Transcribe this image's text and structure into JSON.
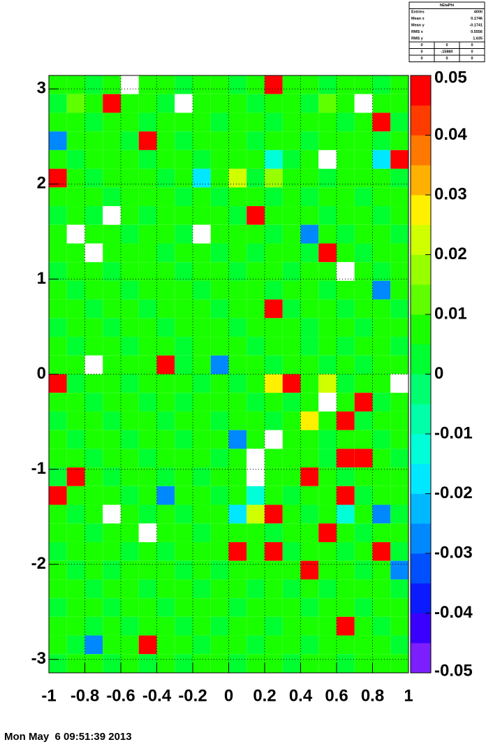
{
  "chart_data": {
    "type": "heatmap",
    "xlim": [
      -1,
      1
    ],
    "ylim": [
      -3.1416,
      3.1416
    ],
    "zlim": [
      -0.05,
      0.05
    ],
    "xticks": [
      -1,
      -0.8,
      -0.6,
      -0.4,
      -0.2,
      0,
      0.2,
      0.4,
      0.6,
      0.8,
      1
    ],
    "yticks": [
      -3,
      -2,
      -1,
      0,
      1,
      2,
      3
    ],
    "zticks": [
      -0.05,
      -0.04,
      -0.03,
      -0.02,
      -0.01,
      0,
      0.01,
      0.02,
      0.03,
      0.04,
      0.05
    ],
    "grid": true,
    "palette": [
      "#7b1fff",
      "#3a00ff",
      "#0a1cff",
      "#0050ff",
      "#0088ff",
      "#00b8ff",
      "#00e8ff",
      "#00ffd8",
      "#00ffa8",
      "#00ff70",
      "#00ff30",
      "#1aff00",
      "#60ff00",
      "#98ff00",
      "#d0ff00",
      "#fff000",
      "#ffb000",
      "#ff7800",
      "#ff3c00",
      "#ff0000"
    ],
    "xbins": [
      -1,
      -0.9,
      -0.8,
      -0.7,
      -0.6,
      -0.5,
      -0.4,
      -0.3,
      -0.2,
      -0.1,
      0,
      0.1,
      0.2,
      0.3,
      0.4,
      0.5,
      0.6,
      0.7,
      0.8,
      0.9,
      1
    ],
    "ybins": [
      3.1416,
      2.9452,
      2.7489,
      2.5525,
      2.3562,
      2.1598,
      1.9635,
      1.7671,
      1.5708,
      1.3744,
      1.1781,
      0.9817,
      0.7854,
      0.589,
      0.3927,
      0.1963,
      0,
      -0.1963,
      -0.3927,
      -0.589,
      -0.7854,
      -0.9817,
      -1.1781,
      -1.3744,
      -1.5708,
      -1.7671,
      -1.9635,
      -2.1598,
      -2.3562,
      -2.5525,
      -2.7489,
      -2.9452,
      -3.1416
    ],
    "values": [
      [
        0.006,
        0.009,
        0.003,
        0.006,
        0,
        0.009,
        0.006,
        0.003,
        0.009,
        0.006,
        0.003,
        0.006,
        0.05,
        0.009,
        0.006,
        0.003,
        0.009,
        0.006,
        0.003,
        0.006
      ],
      [
        0.003,
        0.013,
        0.006,
        0.05,
        0.006,
        0.009,
        0.003,
        0,
        0.006,
        0.009,
        0.006,
        0.003,
        0.009,
        0.006,
        0.003,
        0.013,
        0.006,
        0,
        0.009,
        0.006
      ],
      [
        0.009,
        0.006,
        0.003,
        0.006,
        0.009,
        0.003,
        0.006,
        0.009,
        0.006,
        0.003,
        0.006,
        0.009,
        0.003,
        0.006,
        0.009,
        0.006,
        0.003,
        0.006,
        0.05,
        0.003
      ],
      [
        -0.03,
        0.006,
        0.009,
        0.006,
        0.003,
        0.05,
        0.006,
        0.003,
        0.009,
        0.006,
        0.009,
        0.003,
        0.006,
        0.009,
        0.003,
        0.006,
        0.009,
        0.006,
        0.003,
        0.009
      ],
      [
        0.006,
        0.003,
        0.006,
        0.009,
        0.006,
        0.003,
        0.009,
        0.006,
        0.003,
        0.009,
        0.006,
        0.006,
        -0.01,
        0.003,
        0.006,
        0,
        0.009,
        0.006,
        -0.02,
        0.05
      ],
      [
        0.05,
        0.009,
        0.003,
        0.006,
        0.009,
        0.006,
        0.003,
        0.009,
        -0.02,
        0.006,
        0.024,
        0.003,
        0.016,
        0.006,
        0.009,
        0.003,
        0.006,
        0.009,
        0.006,
        0.003
      ],
      [
        0.009,
        0.006,
        0.009,
        0.003,
        0.006,
        0.009,
        0.006,
        0.003,
        0.006,
        0.003,
        0.006,
        0.009,
        0.003,
        0.006,
        0.003,
        0.009,
        0.006,
        0.003,
        0.009,
        0.006
      ],
      [
        0.003,
        0.006,
        0.003,
        0,
        0.006,
        0.003,
        0.006,
        0.009,
        0.006,
        0.009,
        0.003,
        0.05,
        0.006,
        0.009,
        0.006,
        0.003,
        0.009,
        0.006,
        0.003,
        0.009
      ],
      [
        0.006,
        0,
        0.006,
        0.009,
        0.003,
        0.006,
        0.009,
        0.003,
        0,
        0.006,
        0.009,
        0.006,
        0.003,
        0.006,
        -0.03,
        0.006,
        0.003,
        0.009,
        0.006,
        0.003
      ],
      [
        0.009,
        0.006,
        0,
        0.006,
        0.009,
        0.006,
        0.003,
        0.006,
        0.009,
        0.003,
        0.006,
        0.003,
        0.009,
        0.006,
        0.003,
        0.05,
        0.006,
        0.003,
        0.009,
        0.006
      ],
      [
        0.003,
        0.009,
        0.006,
        0.003,
        0.006,
        0.009,
        0.006,
        0.003,
        0.006,
        0.009,
        0.003,
        0.006,
        0.009,
        0.003,
        0.006,
        0.009,
        0,
        0.006,
        0.003,
        0.009
      ],
      [
        0.006,
        0.003,
        0.009,
        0.006,
        0.003,
        0.006,
        0.009,
        0.006,
        0.003,
        0.006,
        0.009,
        0.006,
        0.003,
        0.006,
        0.009,
        0.003,
        0.006,
        0.009,
        -0.03,
        0.006
      ],
      [
        0.009,
        0.006,
        0.003,
        0.009,
        0.006,
        0.003,
        0.006,
        0.009,
        0.006,
        0.003,
        0.006,
        0.009,
        0.05,
        0.003,
        0.006,
        0.009,
        0.003,
        0.006,
        0.009,
        0.003
      ],
      [
        0.003,
        0.009,
        0.006,
        0.003,
        0.009,
        0.006,
        0.003,
        0.006,
        0.009,
        0.006,
        0.003,
        0.006,
        0.009,
        0.006,
        0.003,
        0.006,
        0.009,
        0.003,
        0.006,
        0.009
      ],
      [
        0.006,
        0.003,
        0.006,
        0.009,
        0.003,
        0.009,
        0.006,
        0.003,
        0.006,
        0.009,
        0.006,
        0.003,
        0.006,
        0.009,
        0.003,
        0.006,
        0.003,
        0.009,
        0.006,
        0.003
      ],
      [
        0.009,
        0.006,
        0,
        0.006,
        0.009,
        0.006,
        0.05,
        0.003,
        0.006,
        -0.03,
        0.006,
        0.009,
        0.003,
        0.006,
        0.009,
        0.003,
        0.006,
        0.003,
        0.009,
        0.006
      ],
      [
        0.05,
        0.003,
        0.009,
        0.006,
        0.003,
        0.009,
        0.006,
        0.009,
        0.003,
        0.006,
        0.003,
        0.006,
        0.03,
        0.05,
        0.006,
        0.024,
        0.003,
        0.006,
        0.006,
        0
      ],
      [
        0.006,
        0.009,
        0.003,
        0.006,
        0.009,
        0.003,
        0.006,
        0.003,
        0.009,
        0.006,
        0.009,
        0.003,
        0.006,
        0.003,
        0.006,
        0,
        0.006,
        0.05,
        0.003,
        0.006
      ],
      [
        0.003,
        0.006,
        0.009,
        0.003,
        0.006,
        0.009,
        0.003,
        0.006,
        0.006,
        0.003,
        0.006,
        0.009,
        0.003,
        0.006,
        0.03,
        0.006,
        0.05,
        0.003,
        0.006,
        0.009
      ],
      [
        0.009,
        0.003,
        0.006,
        0.009,
        0.003,
        0.006,
        0.009,
        0.003,
        0.009,
        0.006,
        -0.03,
        0.006,
        0,
        0.006,
        0.009,
        0.003,
        0.006,
        0.009,
        0.003,
        0.006
      ],
      [
        0.006,
        0.009,
        0.003,
        0.006,
        0.009,
        0.003,
        0.006,
        0.009,
        0.006,
        0.003,
        0.009,
        0,
        0.006,
        0.006,
        0.009,
        0.003,
        0.05,
        0.05,
        0.006,
        0.003
      ],
      [
        0.003,
        0.05,
        0.006,
        0.003,
        0.006,
        0.009,
        0.003,
        0.006,
        0.003,
        0.009,
        0.006,
        0,
        0.006,
        0.009,
        0.05,
        0.006,
        0.003,
        0.006,
        0.009,
        0.006
      ],
      [
        0.05,
        0.006,
        0.009,
        0.006,
        0.003,
        0.006,
        -0.03,
        0.009,
        0.006,
        0.003,
        0.009,
        -0.01,
        0.006,
        0.003,
        0.009,
        0.006,
        0.05,
        0.003,
        0.006,
        0.009
      ],
      [
        0.006,
        0.003,
        0.006,
        0,
        0.009,
        0.003,
        0.006,
        0.003,
        0.009,
        0.006,
        -0.02,
        0.024,
        0.05,
        0.006,
        0.003,
        0.009,
        -0.01,
        0.006,
        -0.03,
        0.003
      ],
      [
        0.009,
        0.006,
        0.003,
        0.006,
        0.006,
        0,
        0.009,
        0.006,
        0.003,
        0.009,
        0.006,
        0.009,
        0.003,
        0.006,
        0.009,
        0.05,
        0.006,
        0.003,
        0.009,
        0.006
      ],
      [
        0.003,
        0.009,
        0.006,
        0.009,
        0.003,
        0.006,
        0.003,
        0.009,
        0.006,
        0.006,
        0.05,
        0.006,
        0.05,
        0.003,
        0.006,
        0.009,
        0.003,
        0.006,
        0.05,
        0.003
      ],
      [
        0.006,
        0.003,
        0.009,
        0.003,
        0.006,
        0.009,
        0.006,
        0.003,
        0.009,
        0.003,
        0.006,
        0.009,
        0.006,
        0.009,
        0.05,
        0.006,
        0.009,
        0.003,
        0.006,
        -0.03
      ],
      [
        0.009,
        0.006,
        0.003,
        0.006,
        0.009,
        0.003,
        0.009,
        0.006,
        0.003,
        0.006,
        0.009,
        0.003,
        0.006,
        0.003,
        0.006,
        0.003,
        0.006,
        0.009,
        0.006,
        0.003
      ],
      [
        0.003,
        0.006,
        0.009,
        0.003,
        0.006,
        0.006,
        0.003,
        0.009,
        0.006,
        0.009,
        0.003,
        0.006,
        0.009,
        0.006,
        0.003,
        0.009,
        0.006,
        0.003,
        0.009,
        0.006
      ],
      [
        0.006,
        0.009,
        0.003,
        0.009,
        0.003,
        0.006,
        0.009,
        0.003,
        0.006,
        0.003,
        0.006,
        0.009,
        0.003,
        0.006,
        0.009,
        0.006,
        0.05,
        0.006,
        0.003,
        0.009
      ],
      [
        0.009,
        0.003,
        -0.03,
        0.006,
        0.006,
        0.05,
        0.006,
        0.009,
        0.003,
        0.006,
        0.009,
        0.003,
        0.006,
        0.009,
        0.003,
        0.006,
        0.009,
        0.006,
        0.006,
        0.003
      ],
      [
        0.003,
        0.006,
        0.009,
        0.003,
        0.009,
        0.003,
        0.006,
        0.003,
        0.009,
        0.006,
        0.003,
        0.009,
        0.006,
        0.003,
        0.006,
        0.009,
        0.003,
        0.006,
        0.009,
        0.006
      ]
    ],
    "stats": {
      "title": "hEtaPhi",
      "rows": [
        [
          "Entries",
          4000
        ],
        [
          "Mean x",
          0.1746
        ],
        [
          "Mean y",
          -0.1741
        ],
        [
          "RMS x",
          0.5556
        ],
        [
          "RMS y",
          1.635
        ]
      ],
      "table": [
        [
          0,
          0,
          0
        ],
        [
          0,
          -15880,
          0
        ],
        [
          0,
          0,
          0
        ]
      ]
    },
    "footer": "Mon May  6 09:51:39 2013"
  }
}
